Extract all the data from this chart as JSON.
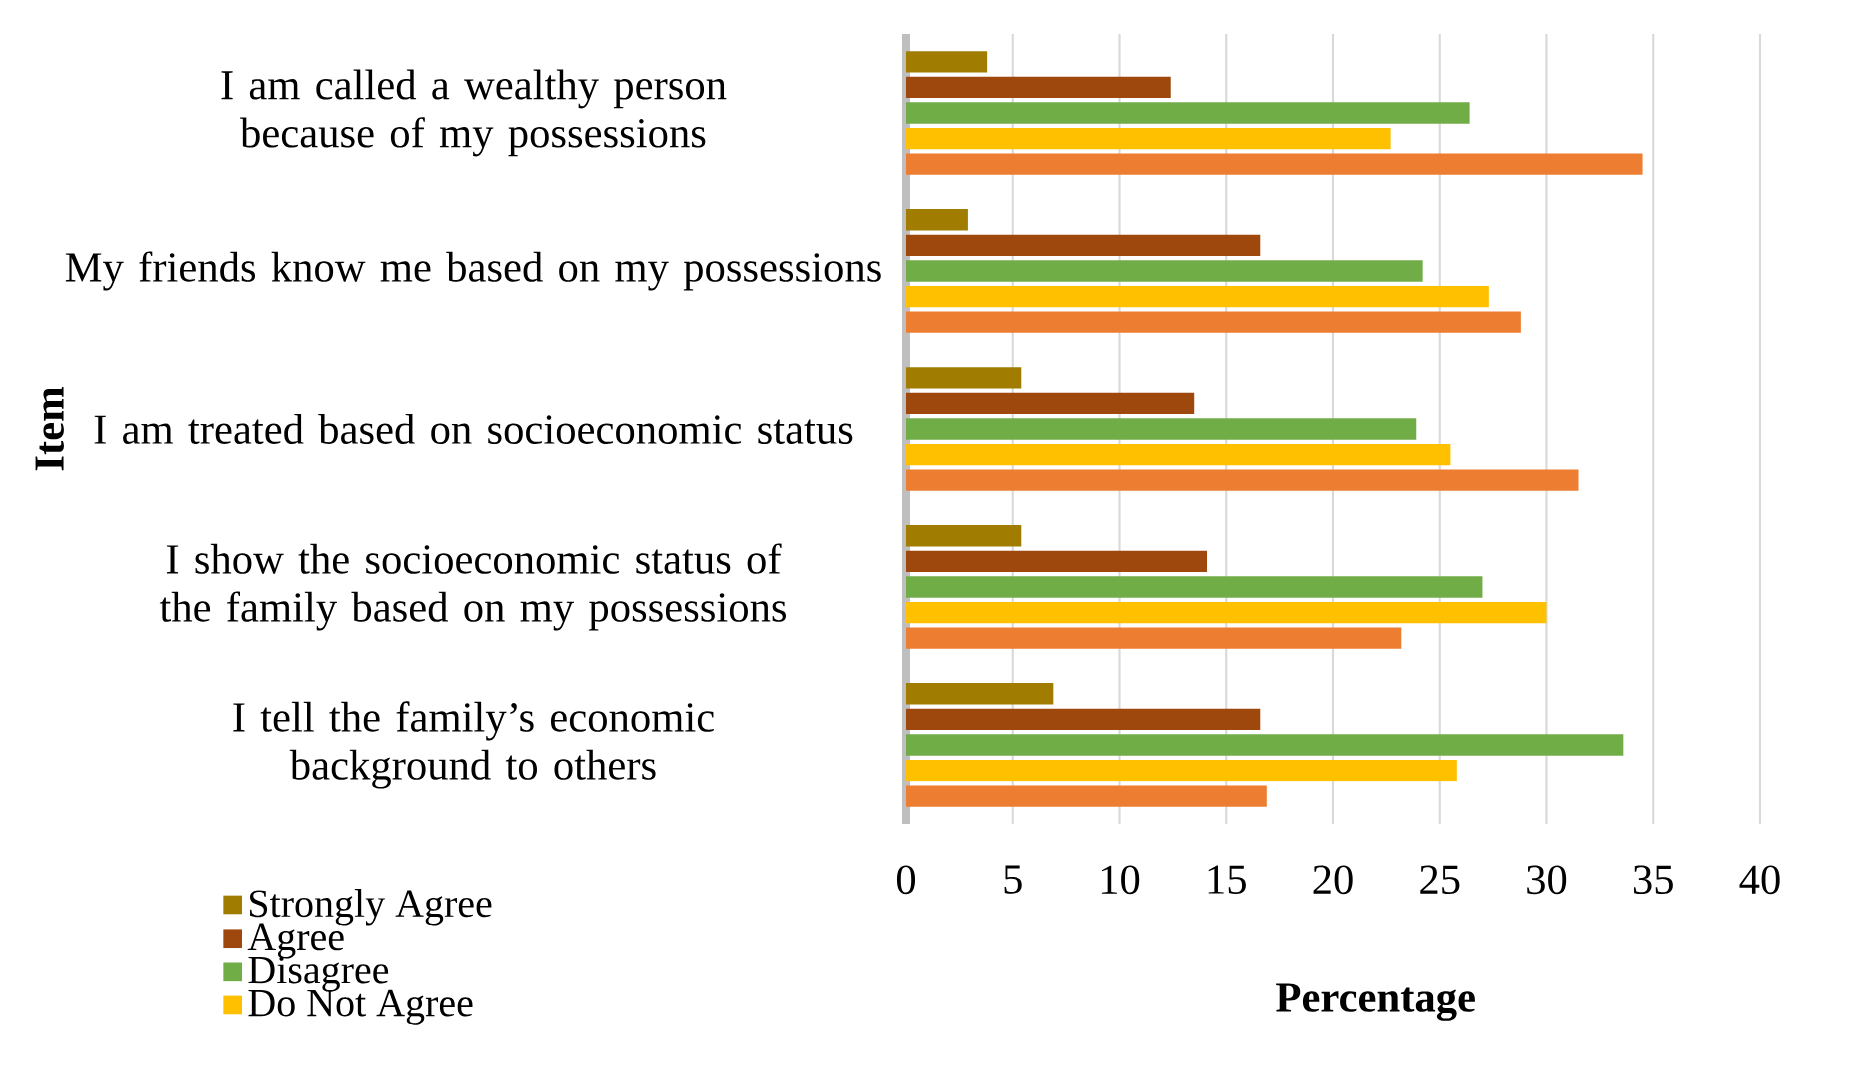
{
  "chart_data": {
    "type": "bar",
    "orientation": "horizontal",
    "xlabel": "Percentage",
    "ylabel": "Item",
    "categories": [
      "I am called a wealthy person because of my possessions",
      "My friends know me based on my possessions",
      "I am treated based on socioeconomic status",
      "I show the socioeconomic status of the family based on my possessions",
      "I tell the family’s economic background to others"
    ],
    "series": [
      {
        "name": "Strongly Agree",
        "color": "#a07c00",
        "values": [
          3.8,
          2.9,
          5.4,
          5.4,
          6.9
        ]
      },
      {
        "name": "Agree",
        "color": "#9e480e",
        "values": [
          12.4,
          16.6,
          13.5,
          14.1,
          16.6
        ]
      },
      {
        "name": "Disagree",
        "color": "#70ad47",
        "values": [
          26.4,
          24.2,
          23.9,
          27.0,
          33.6
        ]
      },
      {
        "name": "Do Not Agree",
        "color": "#ffc000",
        "values": [
          22.7,
          27.3,
          25.5,
          30.0,
          25.8
        ]
      },
      {
        "color": "#ed7d31",
        "values": [
          34.5,
          28.8,
          31.5,
          23.2,
          16.9
        ]
      }
    ],
    "xlim": [
      0,
      40
    ],
    "xticks": [
      0,
      5,
      10,
      15,
      20,
      25,
      30,
      35,
      40
    ],
    "grid": "x",
    "legend": "bottom left"
  }
}
